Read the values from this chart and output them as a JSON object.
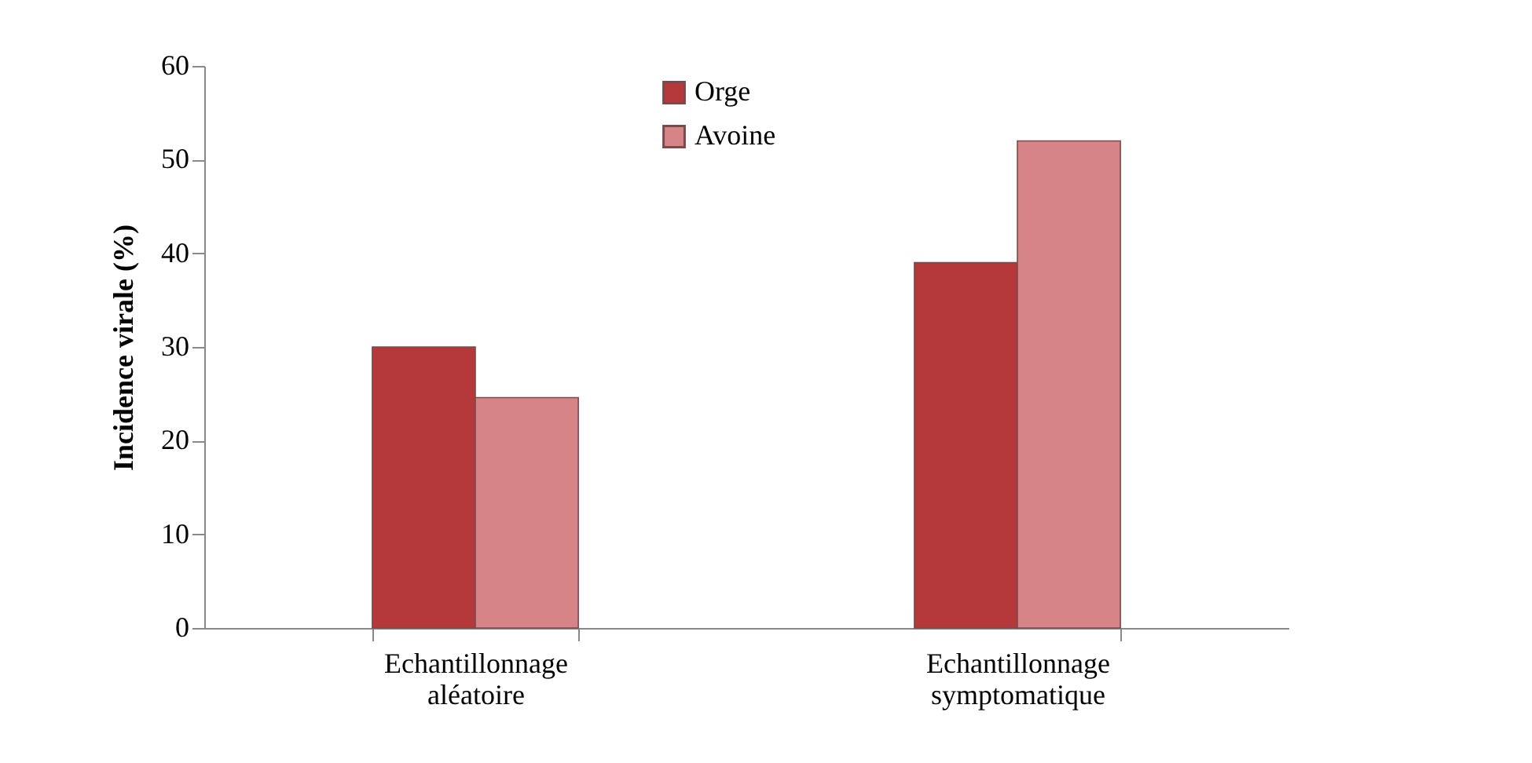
{
  "chart_data": {
    "type": "bar",
    "ylabel": "Incidence virale (%)",
    "categories": [
      "Echantillonnage aléatoire",
      "Echantillonnage symptomatique"
    ],
    "series": [
      {
        "name": "Orge",
        "color": "#b5383a",
        "values": [
          30,
          39
        ]
      },
      {
        "name": "Avoine",
        "color": "#d68487",
        "values": [
          24.6,
          52
        ]
      }
    ],
    "ylim": [
      0,
      60
    ],
    "yticks": [
      0,
      10,
      20,
      30,
      40,
      50,
      60
    ],
    "grid": false,
    "legend": "top"
  }
}
